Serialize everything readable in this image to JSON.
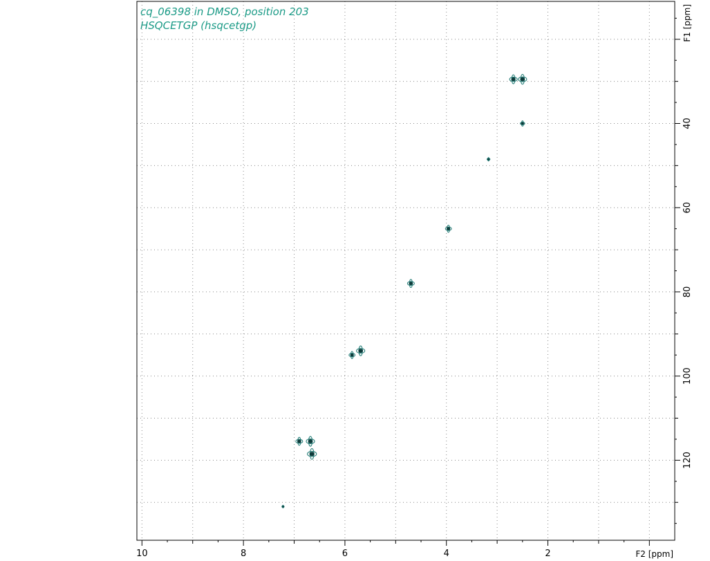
{
  "chart_data": {
    "type": "scatter",
    "title": "cq_06398 in DMSO, position 203",
    "subtitle": "HSQCETGP (hsqcetgp)",
    "xlabel": "F2 [ppm]",
    "ylabel": "F1 [ppm]",
    "xlim": [
      10.1,
      -0.5
    ],
    "ylim": [
      11,
      139
    ],
    "x_reversed": true,
    "y_reversed": true,
    "x_ticks": [
      10,
      8,
      6,
      4,
      2
    ],
    "y_ticks": [
      40,
      60,
      80,
      100,
      120
    ],
    "grid": true,
    "line_color": "#0d3b3a",
    "outline_color": "#1f7a74",
    "title_color": "#1a9a86",
    "points": [
      {
        "x": 2.68,
        "y": 29.5,
        "size": 1.0
      },
      {
        "x": 2.5,
        "y": 29.5,
        "size": 1.1
      },
      {
        "x": 2.5,
        "y": 40.0,
        "size": 0.6
      },
      {
        "x": 3.17,
        "y": 48.5,
        "size": 0.4
      },
      {
        "x": 3.96,
        "y": 65.0,
        "size": 0.8
      },
      {
        "x": 4.7,
        "y": 78.0,
        "size": 0.9
      },
      {
        "x": 5.86,
        "y": 95.0,
        "size": 0.8
      },
      {
        "x": 5.69,
        "y": 94.0,
        "size": 1.1
      },
      {
        "x": 6.9,
        "y": 115.5,
        "size": 0.9
      },
      {
        "x": 6.68,
        "y": 115.5,
        "size": 1.1
      },
      {
        "x": 6.65,
        "y": 118.5,
        "size": 1.2
      },
      {
        "x": 7.22,
        "y": 131.0,
        "size": 0.3
      }
    ]
  }
}
